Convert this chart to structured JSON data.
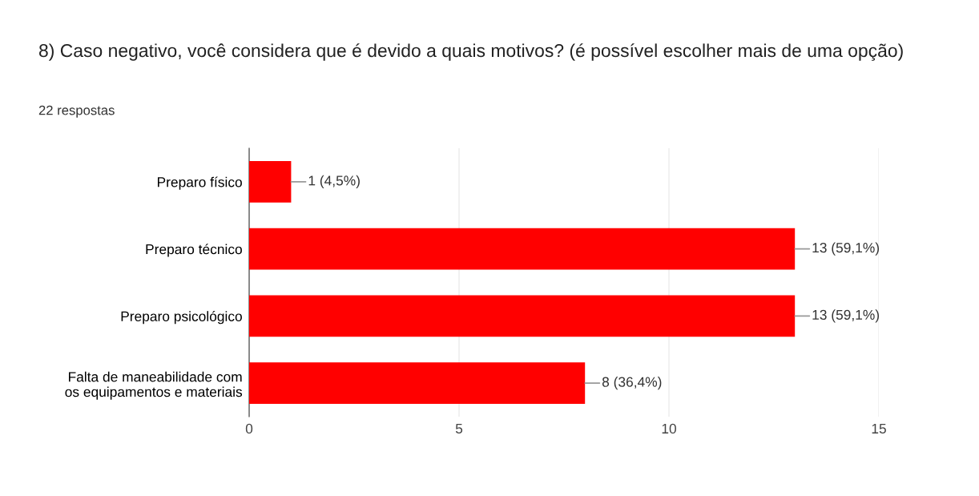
{
  "chart_data": {
    "type": "bar",
    "orientation": "horizontal",
    "title": "8) Caso negativo, você considera que é devido a quais motivos? (é possível escolher mais de uma opção)",
    "subtitle": "22 respostas",
    "categories": [
      "Preparo físico",
      "Preparo técnico",
      "Preparo psicológico",
      "Falta de maneabilidade com os equipamentos e materiais"
    ],
    "values": [
      1,
      13,
      13,
      8
    ],
    "value_labels": [
      "1 (4,5%)",
      "13 (59,1%)",
      "13 (59,1%)",
      "8 (36,4%)"
    ],
    "color": "#ff0000",
    "xlim": [
      0,
      15
    ],
    "xticks": [
      0,
      5,
      10,
      15
    ],
    "grid": "x",
    "legend": false
  }
}
